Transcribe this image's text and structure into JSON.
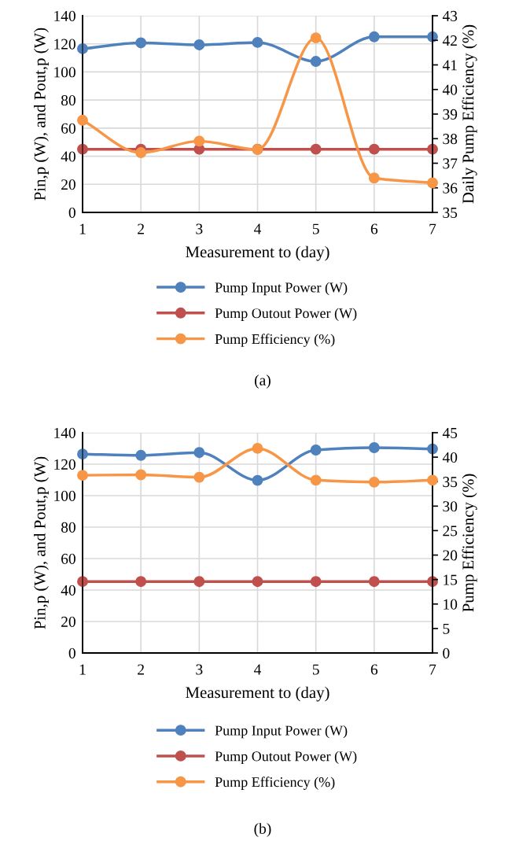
{
  "chart_data": [
    {
      "type": "line",
      "categories": [
        "1",
        "2",
        "3",
        "4",
        "5",
        "6",
        "7"
      ],
      "xlabel": "Measurement to (day)",
      "ylabel": "Pin,p (W), and Pout,p (W)",
      "y2label": "Daily Pump Efficiency (%)",
      "ylim": [
        0,
        140
      ],
      "yticks": [
        0,
        20,
        40,
        60,
        80,
        100,
        120,
        140
      ],
      "y2lim": [
        35,
        43
      ],
      "y2ticks": [
        35,
        36,
        37,
        38,
        39,
        40,
        41,
        42,
        43
      ],
      "grid": true,
      "legend": "bottom",
      "marker": "circle",
      "line_style": "solid",
      "series": [
        {
          "name": "Pump Input Power (W)",
          "color": "#4f81bd",
          "values": [
            116.5,
            120.7,
            119.3,
            121,
            107.5,
            125,
            125
          ]
        },
        {
          "name": "Pump Outout Power (W)",
          "color": "#c0504d",
          "values": [
            45,
            45,
            45,
            45,
            45,
            45,
            45
          ]
        },
        {
          "name": "Pump Efficiency (%)",
          "color": "#f79646",
          "axis": "y2",
          "values": [
            38.75,
            37.43,
            37.9,
            37.56,
            42.1,
            36.4,
            36.2
          ]
        }
      ],
      "annotations": [
        "(a)"
      ]
    },
    {
      "type": "line",
      "categories": [
        "1",
        "2",
        "3",
        "4",
        "5",
        "6",
        "7"
      ],
      "xlabel": "Measurement to (day)",
      "ylabel": "Pin,p (W), and Pout,p (W)",
      "y2label": "Pump Efficiency (%)",
      "ylim": [
        0,
        140
      ],
      "yticks": [
        0,
        20,
        40,
        60,
        80,
        100,
        120,
        140
      ],
      "y2lim": [
        0,
        45
      ],
      "y2ticks": [
        0,
        5,
        10,
        15,
        20,
        25,
        30,
        35,
        40,
        45
      ],
      "grid": true,
      "legend": "bottom",
      "marker": "circle",
      "line_style": "solid",
      "series": [
        {
          "name": "Pump Input Power (W)",
          "color": "#4f81bd",
          "values": [
            126.4,
            125.6,
            127.4,
            109.7,
            129,
            130.5,
            129.7
          ]
        },
        {
          "name": "Pump Outout Power (W)",
          "color": "#c0504d",
          "values": [
            45.4,
            45.4,
            45.4,
            45.4,
            45.4,
            45.4,
            45.4
          ]
        },
        {
          "name": "Pump Efficiency (%)",
          "color": "#f79646",
          "axis": "y2",
          "values": [
            36.3,
            36.4,
            35.9,
            41.8,
            35.3,
            34.9,
            35.3
          ]
        }
      ],
      "annotations": [
        "(b)"
      ]
    }
  ]
}
